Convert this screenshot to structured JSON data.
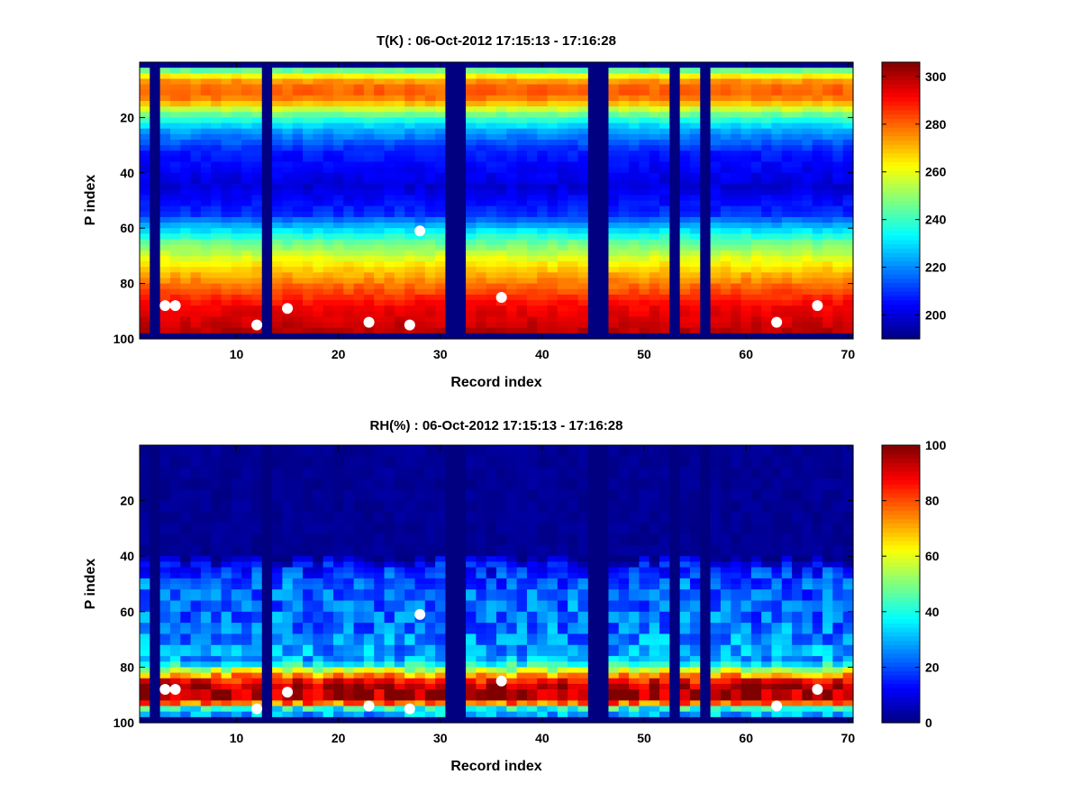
{
  "chart_data": [
    {
      "type": "heatmap",
      "title": "T(K) : 06-Oct-2012 17:15:13 - 17:16:28",
      "xlabel": "Record index",
      "ylabel": "P index",
      "xlim": [
        0.5,
        70.5
      ],
      "ylim": [
        100,
        0
      ],
      "xticks": [
        10,
        20,
        30,
        40,
        50,
        60,
        70
      ],
      "yticks": [
        20,
        40,
        60,
        80,
        100
      ],
      "colorbar": {
        "min": 190,
        "max": 306,
        "ticks": [
          200,
          220,
          240,
          260,
          280,
          300
        ],
        "colormap": "jet"
      },
      "missing_records": [
        2,
        13,
        31,
        32,
        45,
        46,
        53,
        56
      ],
      "missing_level_from": 98,
      "profile_by_pressure_index": [
        {
          "p": 1,
          "value": 190
        },
        {
          "p": 3,
          "value": 245
        },
        {
          "p": 6,
          "value": 272
        },
        {
          "p": 10,
          "value": 282
        },
        {
          "p": 14,
          "value": 276
        },
        {
          "p": 18,
          "value": 250
        },
        {
          "p": 24,
          "value": 225
        },
        {
          "p": 32,
          "value": 208
        },
        {
          "p": 45,
          "value": 200
        },
        {
          "p": 55,
          "value": 210
        },
        {
          "p": 65,
          "value": 245
        },
        {
          "p": 72,
          "value": 262
        },
        {
          "p": 80,
          "value": 278
        },
        {
          "p": 88,
          "value": 292
        },
        {
          "p": 98,
          "value": 300
        }
      ],
      "markers": [
        {
          "record": 3,
          "p": 88
        },
        {
          "record": 4,
          "p": 88
        },
        {
          "record": 12,
          "p": 95
        },
        {
          "record": 15,
          "p": 89
        },
        {
          "record": 23,
          "p": 94
        },
        {
          "record": 27,
          "p": 95
        },
        {
          "record": 28,
          "p": 61
        },
        {
          "record": 36,
          "p": 85
        },
        {
          "record": 63,
          "p": 94
        },
        {
          "record": 67,
          "p": 88
        }
      ]
    },
    {
      "type": "heatmap",
      "title": "RH(%) : 06-Oct-2012 17:15:13 - 17:16:28",
      "xlabel": "Record index",
      "ylabel": "P index",
      "xlim": [
        0.5,
        70.5
      ],
      "ylim": [
        100,
        0
      ],
      "xticks": [
        10,
        20,
        30,
        40,
        50,
        60,
        70
      ],
      "yticks": [
        20,
        40,
        60,
        80,
        100
      ],
      "colorbar": {
        "min": 0,
        "max": 100,
        "ticks": [
          0,
          20,
          40,
          60,
          80,
          100
        ],
        "colormap": "jet"
      },
      "missing_records": [
        2,
        13,
        31,
        32,
        45,
        46,
        53,
        56
      ],
      "missing_level_from": 98,
      "profile_by_pressure_index": [
        {
          "p": 1,
          "value": 2
        },
        {
          "p": 40,
          "value": 2
        },
        {
          "p": 43,
          "value": 12
        },
        {
          "p": 50,
          "value": 22
        },
        {
          "p": 65,
          "value": 24
        },
        {
          "p": 78,
          "value": 30
        },
        {
          "p": 82,
          "value": 65
        },
        {
          "p": 86,
          "value": 95
        },
        {
          "p": 92,
          "value": 96
        },
        {
          "p": 95,
          "value": 40
        },
        {
          "p": 98,
          "value": 25
        }
      ],
      "markers": [
        {
          "record": 3,
          "p": 88
        },
        {
          "record": 4,
          "p": 88
        },
        {
          "record": 12,
          "p": 95
        },
        {
          "record": 15,
          "p": 89
        },
        {
          "record": 23,
          "p": 94
        },
        {
          "record": 27,
          "p": 95
        },
        {
          "record": 28,
          "p": 61
        },
        {
          "record": 36,
          "p": 85
        },
        {
          "record": 63,
          "p": 94
        },
        {
          "record": 67,
          "p": 88
        }
      ]
    }
  ]
}
